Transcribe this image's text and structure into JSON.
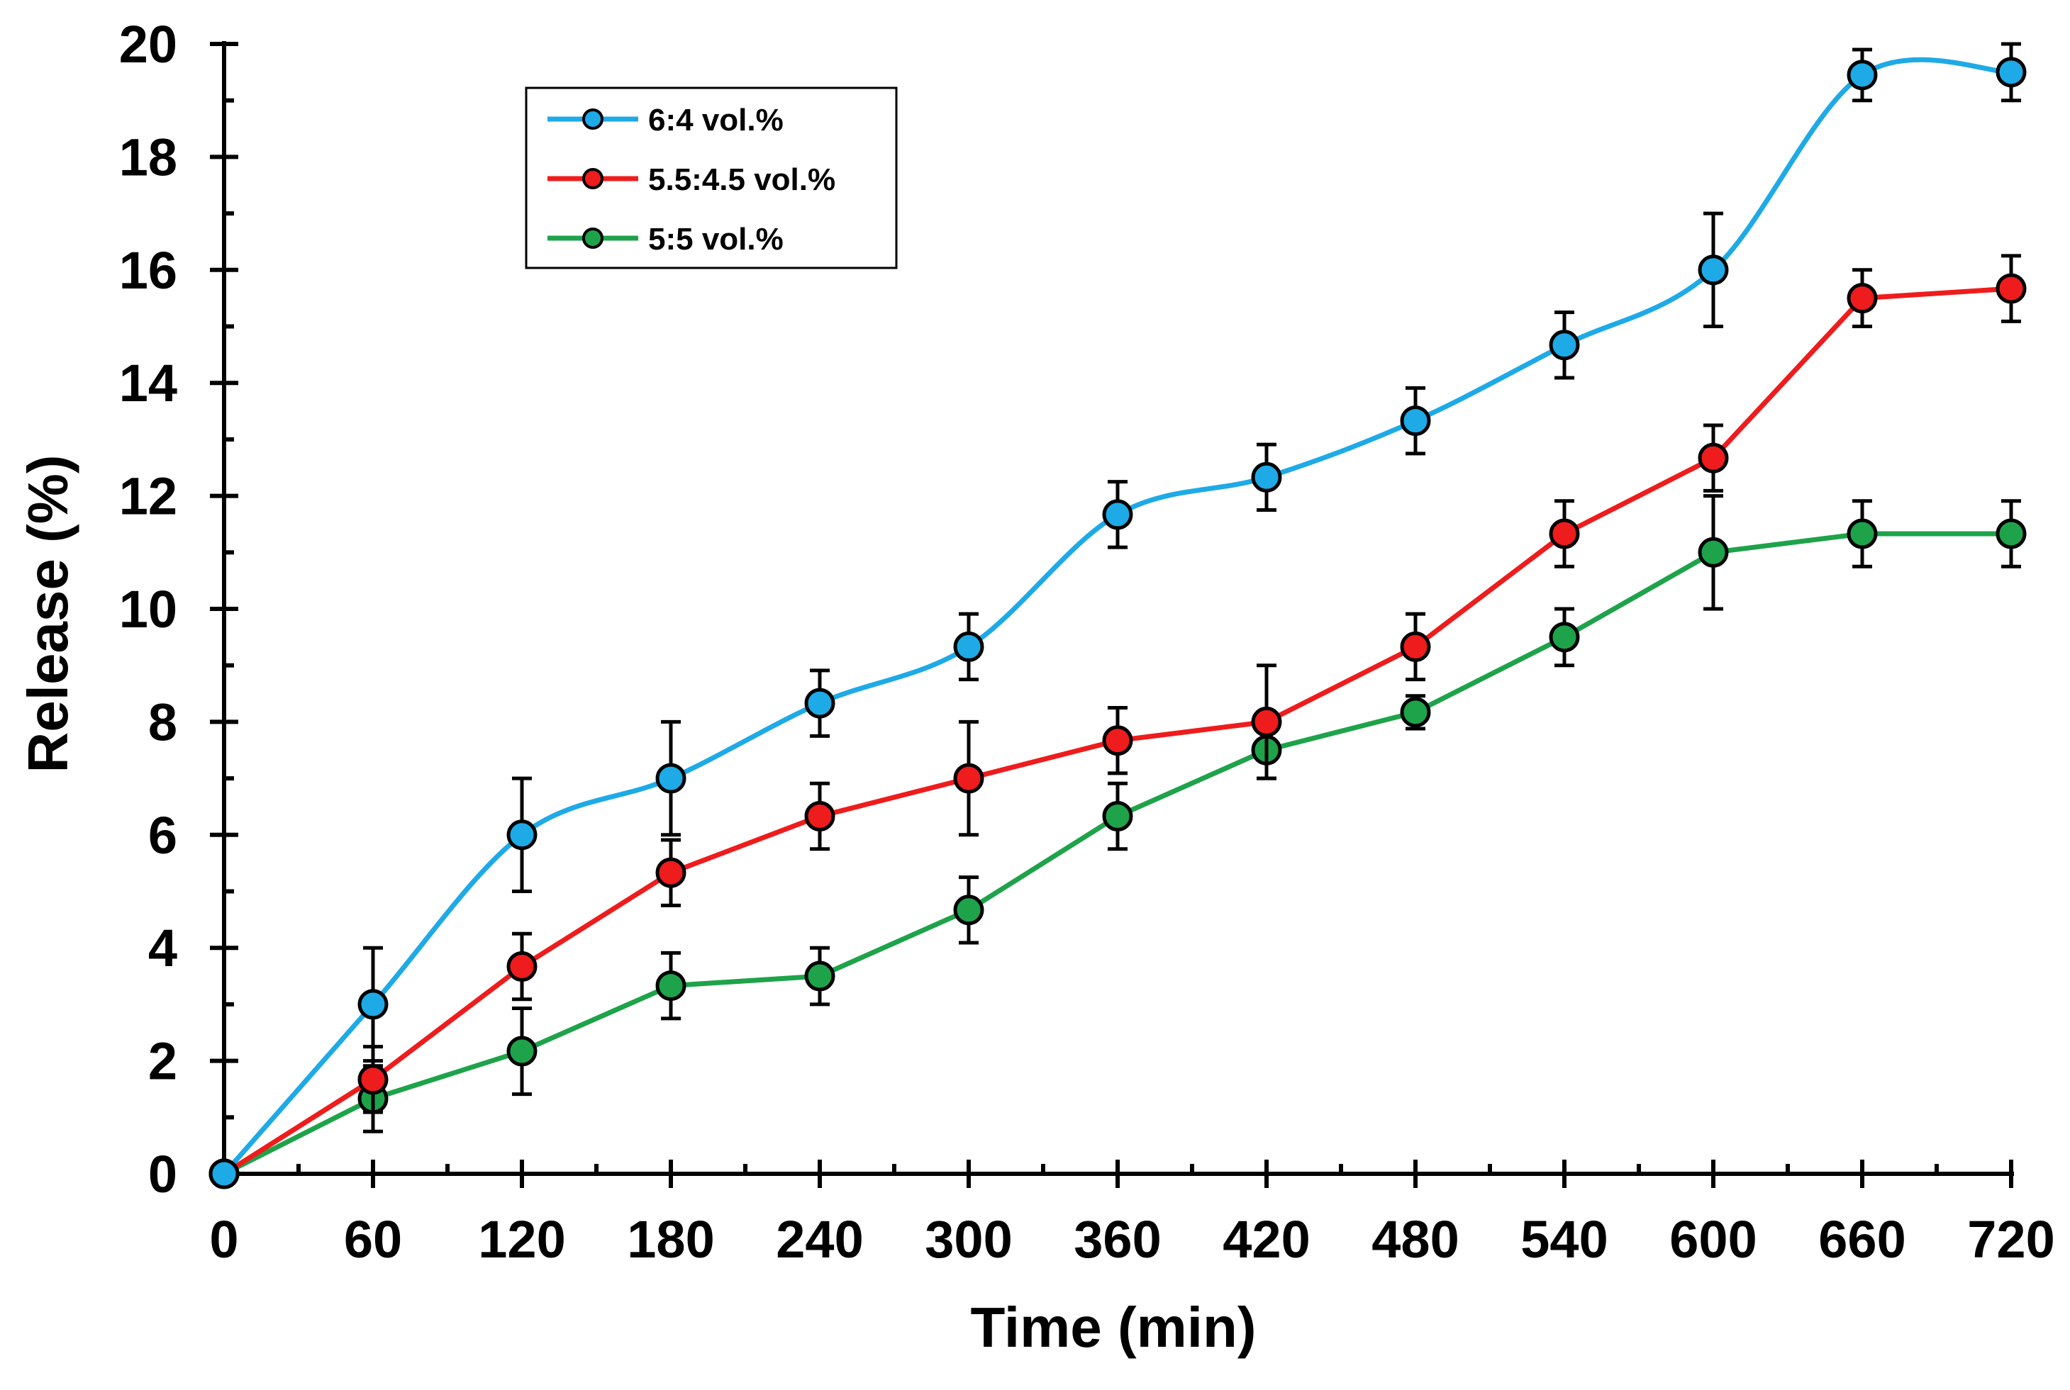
{
  "chart_data": {
    "type": "line",
    "title": "",
    "xlabel": "Time (min)",
    "ylabel": "Release (%)",
    "xlim": [
      0,
      720
    ],
    "ylim": [
      0,
      20
    ],
    "x_ticks": [
      0,
      60,
      120,
      180,
      240,
      300,
      360,
      420,
      480,
      540,
      600,
      660,
      720
    ],
    "x_minor_step": 30,
    "y_ticks": [
      0,
      2,
      4,
      6,
      8,
      10,
      12,
      14,
      16,
      18,
      20
    ],
    "y_minor_step": 1,
    "grid": false,
    "legend_position": "top-left",
    "x": [
      0,
      60,
      120,
      180,
      240,
      300,
      360,
      420,
      480,
      540,
      600,
      660,
      720
    ],
    "series": [
      {
        "name": "6:4 vol.%",
        "color": "#1EAAE6",
        "smooth": true,
        "values": [
          0,
          3.0,
          6.0,
          7.0,
          8.33,
          9.33,
          11.67,
          12.33,
          13.33,
          14.67,
          16.0,
          19.45,
          19.5
        ],
        "errors": [
          0,
          1.0,
          1.0,
          1.0,
          0.58,
          0.58,
          0.58,
          0.58,
          0.58,
          0.58,
          1.0,
          0.45,
          0.5
        ]
      },
      {
        "name": "5.5:4.5 vol.%",
        "color": "#EE1C1C",
        "smooth": false,
        "values": [
          0,
          1.67,
          3.67,
          5.33,
          6.33,
          7.0,
          7.67,
          8.0,
          9.33,
          11.33,
          12.67,
          15.5,
          15.67
        ],
        "errors": [
          0,
          0.58,
          0.58,
          0.58,
          0.58,
          1.0,
          0.58,
          1.0,
          0.58,
          0.58,
          0.58,
          0.5,
          0.58
        ]
      },
      {
        "name": "5:5 vol.%",
        "color": "#1EA34A",
        "smooth": false,
        "values": [
          0,
          1.33,
          2.17,
          3.33,
          3.5,
          4.67,
          6.33,
          7.5,
          8.17,
          9.5,
          11.0,
          11.33,
          11.33
        ],
        "errors": [
          0,
          0.58,
          0.76,
          0.58,
          0.5,
          0.58,
          0.58,
          0.5,
          0.29,
          0.5,
          1.0,
          0.58,
          0.58
        ]
      }
    ]
  }
}
